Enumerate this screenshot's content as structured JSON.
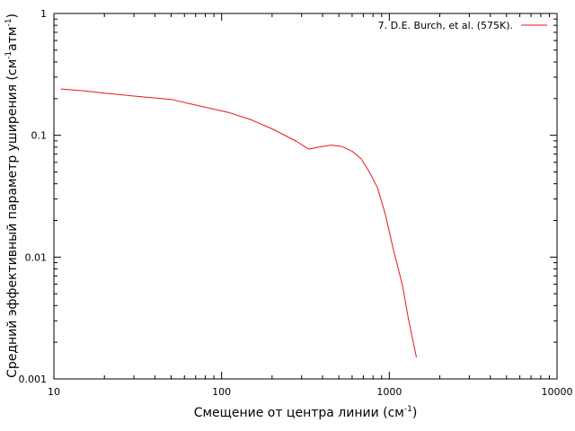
{
  "chart_data": {
    "type": "line",
    "title": "",
    "xlabel": "Смещение от центра линии (см",
    "xlabel_sup": "-1",
    "xlabel_end": ")",
    "ylabel": "Средний эффективный параметр уширения (см",
    "ylabel_sup1": "-1",
    "ylabel_mid": "атм",
    "ylabel_sup2": "-1",
    "ylabel_end": ")",
    "x_scale": "log",
    "y_scale": "log",
    "xlim": [
      10,
      10000
    ],
    "ylim": [
      0.001,
      1
    ],
    "x_ticks": [
      {
        "value": 10,
        "label": "10"
      },
      {
        "value": 100,
        "label": "100"
      },
      {
        "value": 1000,
        "label": "1000"
      },
      {
        "value": 10000,
        "label": "10000"
      }
    ],
    "y_ticks": [
      {
        "value": 0.001,
        "label": "0.001"
      },
      {
        "value": 0.01,
        "label": "0.01"
      },
      {
        "value": 0.1,
        "label": "0.1"
      },
      {
        "value": 1,
        "label": "1"
      }
    ],
    "grid": false,
    "legend_position": "top-right",
    "series": [
      {
        "name": "7. D.E. Burch, et al. (575K).",
        "color": "#e8161c",
        "x": [
          11,
          15,
          20,
          30,
          50,
          70,
          110,
          150,
          200,
          280,
          330,
          380,
          450,
          520,
          600,
          680,
          760,
          850,
          950,
          1050,
          1200,
          1300,
          1450
        ],
        "y": [
          0.24,
          0.232,
          0.222,
          0.21,
          0.197,
          0.177,
          0.154,
          0.134,
          0.113,
          0.089,
          0.077,
          0.08,
          0.083,
          0.081,
          0.074,
          0.064,
          0.05,
          0.037,
          0.022,
          0.012,
          0.0058,
          0.0031,
          0.0015
        ]
      }
    ]
  }
}
